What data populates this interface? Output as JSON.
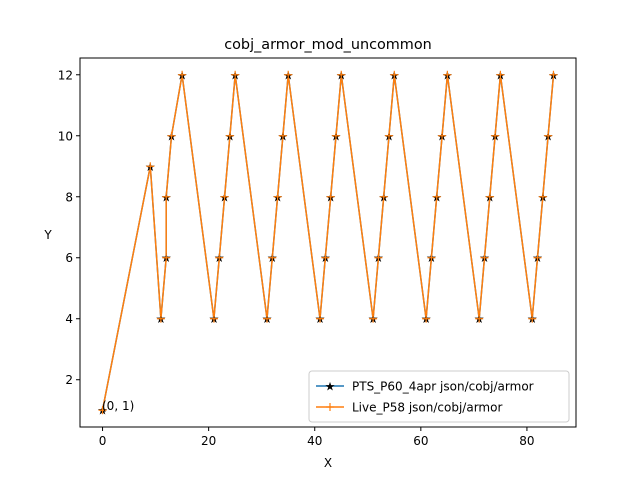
{
  "chart_data": {
    "type": "line",
    "title": "cobj_armor_mod_uncommon",
    "xlabel": "X",
    "ylabel": "Y",
    "xlim": [
      -4.25,
      89.25
    ],
    "ylim": [
      0.45,
      12.55
    ],
    "xticks": [
      0,
      20,
      40,
      60,
      80
    ],
    "yticks": [
      2,
      4,
      6,
      8,
      10,
      12
    ],
    "grid": false,
    "legend_position": "lower right",
    "annotation": {
      "text": "(0, 1)",
      "x": 0,
      "y": 1
    },
    "x": [
      0,
      9,
      11,
      12,
      12,
      13,
      15,
      21,
      22,
      23,
      24,
      25,
      31,
      32,
      33,
      34,
      35,
      41,
      42,
      43,
      44,
      45,
      51,
      52,
      53,
      54,
      55,
      61,
      62,
      63,
      64,
      65,
      71,
      72,
      73,
      74,
      75,
      81,
      82,
      83,
      84,
      85
    ],
    "series": [
      {
        "name": "PTS_P60_4apr json/cobj/armor",
        "color": "#1f77b4",
        "marker": "star",
        "y": [
          1,
          9,
          4,
          6,
          8,
          10,
          12,
          4,
          6,
          8,
          10,
          12,
          4,
          6,
          8,
          10,
          12,
          4,
          6,
          8,
          10,
          12,
          4,
          6,
          8,
          10,
          12,
          4,
          6,
          8,
          10,
          12,
          4,
          6,
          8,
          10,
          12,
          4,
          6,
          8,
          10,
          12
        ]
      },
      {
        "name": "Live_P58 json/cobj/armor",
        "color": "#ff7f0e",
        "marker": "plus",
        "y": [
          1,
          9,
          4,
          6,
          8,
          10,
          12,
          4,
          6,
          8,
          10,
          12,
          4,
          6,
          8,
          10,
          12,
          4,
          6,
          8,
          10,
          12,
          4,
          6,
          8,
          10,
          12,
          4,
          6,
          8,
          10,
          12,
          4,
          6,
          8,
          10,
          12,
          4,
          6,
          8,
          10,
          12
        ]
      }
    ]
  }
}
